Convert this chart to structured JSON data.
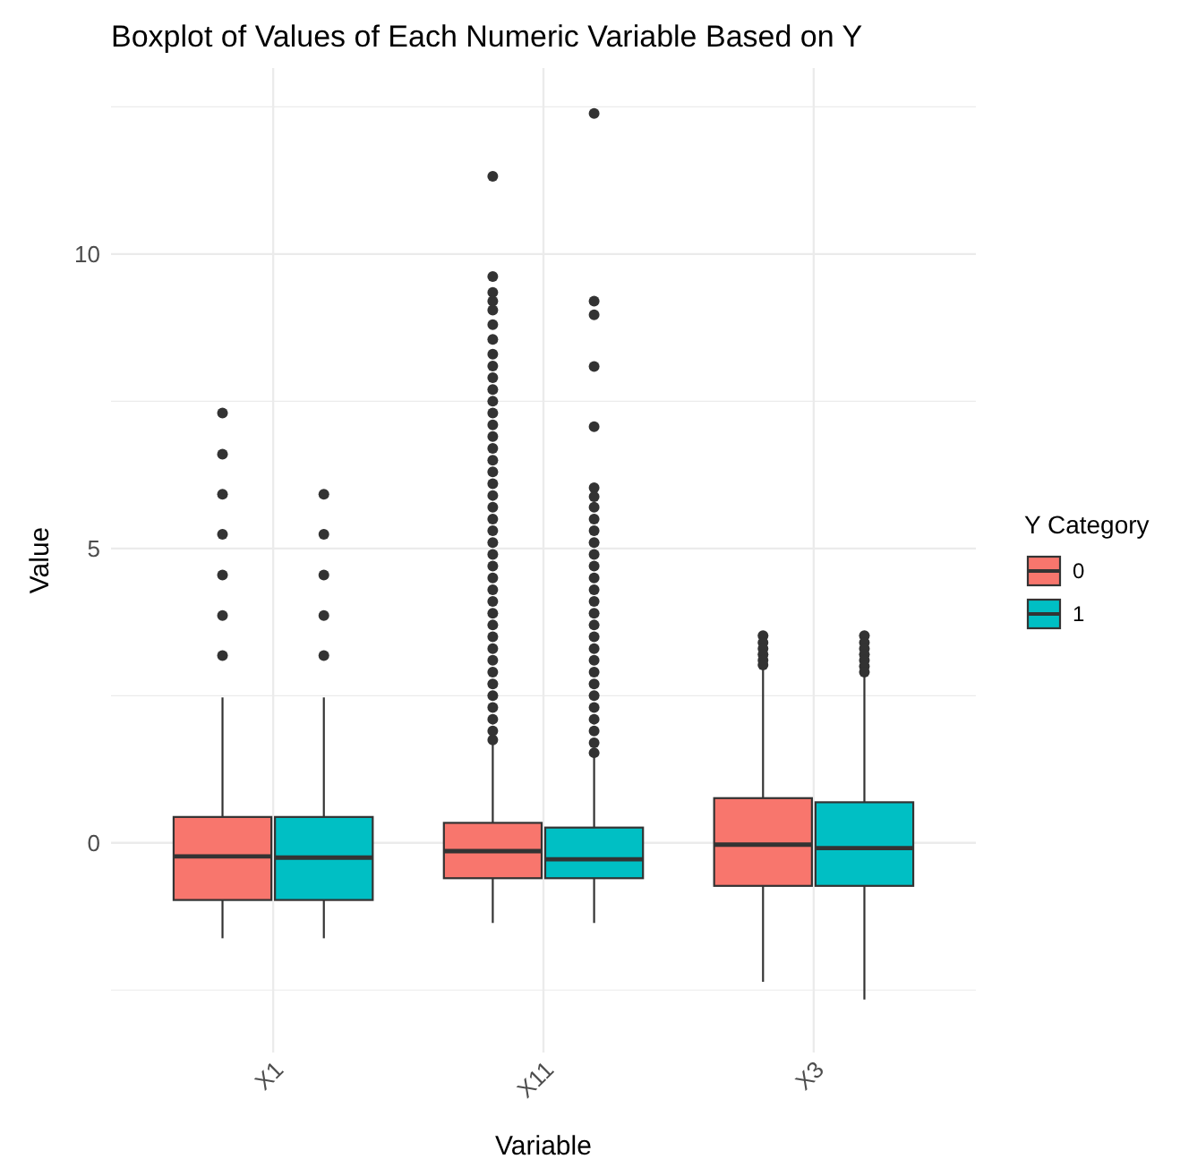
{
  "chart_data": {
    "type": "box",
    "title": "Boxplot of Values of Each Numeric Variable Based on Y",
    "xlabel": "Variable",
    "ylabel": "Value",
    "legend_title": "Y Category",
    "legend": "right",
    "grid": true,
    "categories": [
      "X1",
      "X11",
      "X3"
    ],
    "ylim": [
      -3.56,
      13.16
    ],
    "yticks": [
      {
        "value": -2.5,
        "label": null
      },
      0,
      {
        "value": 2.5,
        "label": null
      },
      5,
      {
        "value": 7.5,
        "label": null
      },
      10,
      {
        "value": 12.5,
        "label": null
      }
    ],
    "series": [
      {
        "name": "0",
        "color": "#f8766d",
        "boxes": [
          {
            "low": -1.62,
            "q1": -0.97,
            "median": -0.23,
            "q3": 0.44,
            "high": 2.47,
            "outliers": [
              7.3,
              6.6,
              5.92,
              5.24,
              4.55,
              3.86,
              3.18
            ]
          },
          {
            "low": -1.36,
            "q1": -0.6,
            "median": -0.14,
            "q3": 0.34,
            "high": 1.67,
            "outliers": [
              11.32,
              9.62,
              9.35,
              9.2,
              9.05,
              8.8,
              8.55,
              8.3,
              8.1,
              7.9,
              7.7,
              7.5,
              7.3,
              7.1,
              6.9,
              6.7,
              6.5,
              6.3,
              6.1,
              5.9,
              5.7,
              5.5,
              5.3,
              5.1,
              4.9,
              4.7,
              4.5,
              4.3,
              4.1,
              3.9,
              3.7,
              3.5,
              3.3,
              3.1,
              2.9,
              2.7,
              2.5,
              2.3,
              2.1,
              1.9,
              1.75
            ]
          },
          {
            "low": -2.36,
            "q1": -0.73,
            "median": -0.03,
            "q3": 0.76,
            "high": 2.96,
            "outliers": [
              3.52,
              3.4,
              3.3,
              3.2,
              3.1,
              3.02
            ]
          }
        ]
      },
      {
        "name": "1",
        "color": "#00bfc4",
        "boxes": [
          {
            "low": -1.62,
            "q1": -0.97,
            "median": -0.25,
            "q3": 0.44,
            "high": 2.47,
            "outliers": [
              5.92,
              5.24,
              4.55,
              3.86,
              3.18
            ]
          },
          {
            "low": -1.36,
            "q1": -0.6,
            "median": -0.28,
            "q3": 0.26,
            "high": 1.45,
            "outliers": [
              12.39,
              9.2,
              8.97,
              8.09,
              7.07,
              6.03,
              5.88,
              5.7,
              5.5,
              5.3,
              5.1,
              4.9,
              4.7,
              4.5,
              4.3,
              4.1,
              3.9,
              3.7,
              3.5,
              3.3,
              3.1,
              2.9,
              2.7,
              2.5,
              2.3,
              2.1,
              1.9,
              1.7,
              1.53
            ]
          },
          {
            "low": -2.66,
            "q1": -0.73,
            "median": -0.09,
            "q3": 0.69,
            "high": 2.84,
            "outliers": [
              3.52,
              3.4,
              3.3,
              3.2,
              3.1,
              3.0,
              2.9
            ]
          }
        ]
      }
    ]
  }
}
